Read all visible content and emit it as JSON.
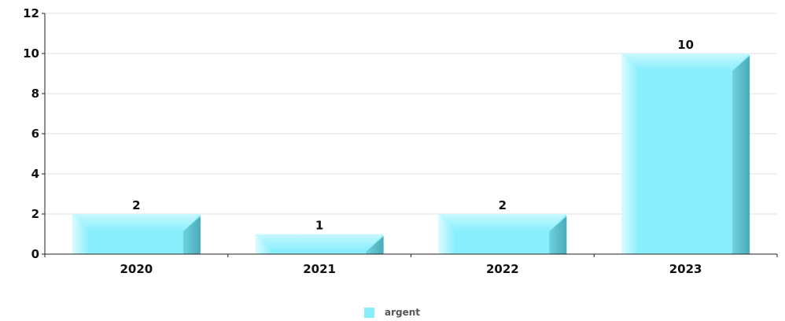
{
  "chart_data": {
    "type": "bar",
    "categories": [
      "2020",
      "2021",
      "2022",
      "2023"
    ],
    "series": [
      {
        "name": "argent",
        "values": [
          2,
          1,
          2,
          10
        ],
        "color": "#88eefc"
      }
    ],
    "title": "",
    "xlabel": "",
    "ylabel": "",
    "ylim": [
      0,
      12
    ],
    "yticks": [
      0,
      2,
      4,
      6,
      8,
      10,
      12
    ],
    "ytick_labels": [
      "0",
      "2",
      "4",
      "6",
      "8",
      "10",
      "12"
    ],
    "data_labels": [
      "2",
      "1",
      "2",
      "10"
    ],
    "grid": true,
    "legend_position": "bottom-center"
  },
  "legend": {
    "items": [
      {
        "label": "argent",
        "color": "#88eefc"
      }
    ]
  }
}
